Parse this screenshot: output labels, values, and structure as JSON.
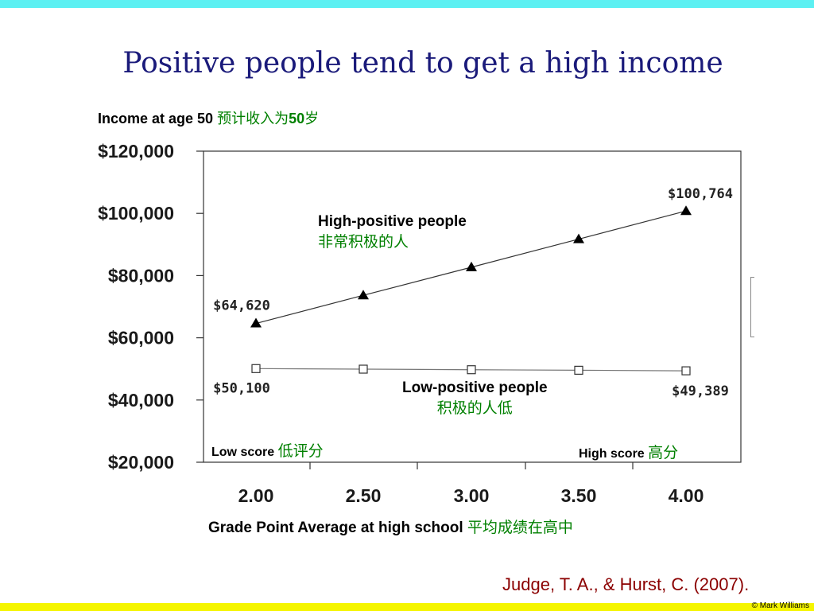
{
  "slide": {
    "title": "Positive people tend to  get a high income",
    "citation": "Judge, T. A., & Hurst, C. (2007).",
    "copyright": "© Mark Williams",
    "colors": {
      "top_bar": "#5cf0f2",
      "bottom_bar": "#f5f500",
      "title": "#1a1a7a",
      "chinese": "#008000",
      "citation": "#8b0000"
    }
  },
  "chart_data": {
    "type": "line",
    "ylabel": "Income at age 50",
    "ylabel_cn": "预计收入为",
    "ylabel_cn_num": "50",
    "ylabel_cn_suffix": "岁",
    "xlabel": "Grade Point Average at high school",
    "xlabel_cn": "平均成绩在高中",
    "x": [
      2.0,
      2.5,
      3.0,
      3.5,
      4.0
    ],
    "x_tick_labels": [
      "2.00",
      "2.50",
      "3.00",
      "3.50",
      "4.00"
    ],
    "ylim": [
      20000,
      120000
    ],
    "y_tick_values": [
      20000,
      40000,
      60000,
      80000,
      100000,
      120000
    ],
    "y_tick_labels": [
      "$20,000",
      "$40,000",
      "$60,000",
      "$80,000",
      "$100,000",
      "$120,000"
    ],
    "grid": false,
    "series": [
      {
        "name": "High-positive people",
        "name_cn": "非常积极的人",
        "marker": "filled-triangle",
        "values": [
          64620,
          73650,
          82690,
          91720,
          100764
        ],
        "labels": [
          "$64,620",
          "",
          "",
          "",
          "$100,764"
        ]
      },
      {
        "name": "Low-positive people",
        "name_cn": "积极的人低",
        "marker": "open-square",
        "values": [
          50100,
          49920,
          49740,
          49570,
          49389
        ],
        "labels": [
          "$50,100",
          "",
          "",
          "",
          "$49,389"
        ]
      }
    ],
    "annotations": {
      "low_score": "Low score",
      "low_score_cn": "低评分",
      "high_score": "High score",
      "high_score_cn": "高分"
    }
  }
}
